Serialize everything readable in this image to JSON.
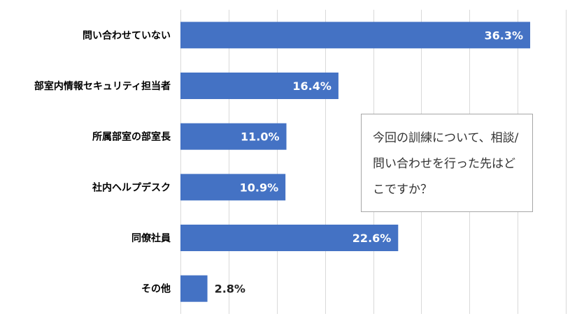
{
  "chart_data": {
    "type": "bar",
    "orientation": "horizontal",
    "categories": [
      "問い合わせていない",
      "部室内情報セキュリティ担当者",
      "所属部室の部室長",
      "社内ヘルプデスク",
      "同僚社員",
      "その他"
    ],
    "values": [
      36.3,
      16.4,
      11.0,
      10.9,
      22.6,
      2.8
    ],
    "value_labels": [
      "36.3%",
      "16.4%",
      "11.0%",
      "10.9%",
      "22.6%",
      "2.8%"
    ],
    "xlim": [
      0,
      40
    ],
    "grid": true,
    "legend": "none",
    "colors": {
      "bar": "#4472c4",
      "grid": "#d9d9d9"
    }
  },
  "annotation": {
    "text": "今回の訓練について、相談/問い合わせを行った先はどこですか？"
  }
}
